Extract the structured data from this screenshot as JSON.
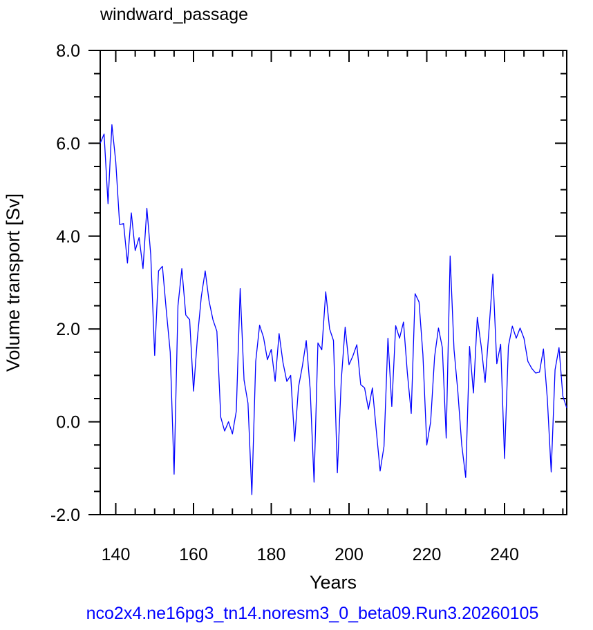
{
  "chart_data": {
    "type": "line",
    "title": "windward_passage",
    "xlabel": "Years",
    "ylabel": "Volume transport [Sv]",
    "footer": "nco2x4.ne16pg3_tn14.noresm3_0_beta09.Run3.20260105",
    "xlim": [
      136,
      256
    ],
    "ylim": [
      -2.0,
      8.0
    ],
    "x_ticks": [
      140,
      160,
      180,
      200,
      220,
      240
    ],
    "x_tick_labels": [
      "140",
      "160",
      "180",
      "200",
      "220",
      "240"
    ],
    "y_ticks": [
      -2.0,
      0.0,
      2.0,
      4.0,
      6.0,
      8.0
    ],
    "y_tick_labels": [
      "-2.0",
      "0.0",
      "2.0",
      "4.0",
      "6.0",
      "8.0"
    ],
    "grid": false,
    "line_color": "#0000ff",
    "series": [
      {
        "x": [
          136,
          137,
          138,
          139,
          140,
          141,
          142,
          143,
          144,
          145,
          146,
          147,
          148,
          149,
          150,
          151,
          152,
          153,
          154,
          155,
          156,
          157,
          158,
          159,
          160,
          161,
          162,
          163,
          164,
          165,
          166,
          167,
          168,
          169,
          170,
          171,
          172,
          173,
          174,
          175,
          176,
          177,
          178,
          179,
          180,
          181,
          182,
          183,
          184,
          185,
          186,
          187,
          188,
          189,
          190,
          191,
          192,
          193,
          194,
          195,
          196,
          197,
          198,
          199,
          200,
          201,
          202,
          203,
          204,
          205,
          206,
          207,
          208,
          209,
          210,
          211,
          212,
          213,
          214,
          215,
          216,
          217,
          218,
          219,
          220,
          221,
          222,
          223,
          224,
          225,
          226,
          227,
          228,
          229,
          230,
          231,
          232,
          233,
          234,
          235,
          236,
          237,
          238,
          239,
          240,
          241,
          242,
          243,
          244,
          245,
          246,
          247,
          248,
          249,
          250,
          251,
          252,
          253,
          254,
          255,
          256
        ],
        "y": [
          6.0,
          6.2,
          4.7,
          6.4,
          5.6,
          4.25,
          4.27,
          3.42,
          4.5,
          3.69,
          3.97,
          3.3,
          4.6,
          3.6,
          1.43,
          3.25,
          3.35,
          2.4,
          1.5,
          -1.13,
          2.5,
          3.3,
          2.3,
          2.2,
          0.66,
          1.8,
          2.7,
          3.25,
          2.6,
          2.2,
          1.95,
          0.1,
          -0.2,
          0.0,
          -0.26,
          0.23,
          2.87,
          0.9,
          0.4,
          -1.57,
          1.3,
          2.08,
          1.82,
          1.34,
          1.56,
          0.87,
          1.9,
          1.28,
          0.87,
          1.0,
          -0.42,
          0.75,
          1.2,
          1.75,
          0.7,
          -1.3,
          1.7,
          1.55,
          2.8,
          2.0,
          1.75,
          -1.1,
          0.9,
          2.04,
          1.23,
          1.42,
          1.66,
          0.8,
          0.73,
          0.27,
          0.73,
          -0.18,
          -1.06,
          -0.53,
          1.8,
          0.33,
          2.07,
          1.8,
          2.15,
          1.05,
          0.18,
          2.76,
          2.58,
          1.45,
          -0.5,
          0.0,
          1.4,
          2.02,
          1.6,
          -0.35,
          3.57,
          1.56,
          0.64,
          -0.5,
          -1.2,
          1.62,
          0.62,
          2.25,
          1.62,
          0.85,
          1.98,
          3.18,
          1.25,
          1.67,
          -0.79,
          1.63,
          2.06,
          1.8,
          2.02,
          1.8,
          1.3,
          1.15,
          1.05,
          1.07,
          1.57,
          0.5,
          -1.08,
          1.12,
          1.6,
          0.55,
          0.3
        ]
      }
    ]
  }
}
